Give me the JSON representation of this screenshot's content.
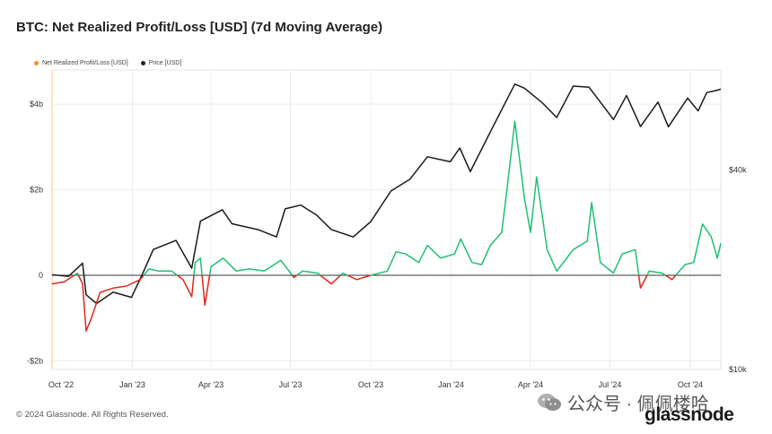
{
  "title": "BTC: Net Realized Profit/Loss [USD] (7d Moving Average)",
  "footer": "© 2024 Glassnode. All Rights Reserved.",
  "watermark": "公众号 · 佩佩楼哈",
  "brand": "glassnode",
  "colors": {
    "profit": "#1fbf74",
    "loss": "#e0261b",
    "price": "#1a1a1a",
    "legend_nrpl": "#f7931a",
    "zero": "#333333",
    "grid": "#ececec"
  },
  "legend": [
    {
      "label": "Net Realized Profit/Loss [USD]",
      "color": "#f7931a"
    },
    {
      "label": "Price [USD]",
      "color": "#222222"
    }
  ],
  "chart_data": {
    "type": "line",
    "title": "BTC: Net Realized Profit/Loss [USD] (7d Moving Average)",
    "x_ticks": [
      "Oct '22",
      "Jan '23",
      "Apr '23",
      "Jul '23",
      "Oct '23",
      "Jan '24",
      "Apr '24",
      "Jul '24",
      "Oct '24"
    ],
    "x_range": [
      "2022-10-01",
      "2024-11-05"
    ],
    "y_left": {
      "ticks": [
        "$4b",
        "$2b",
        "0",
        "-$2b"
      ],
      "tick_values": [
        4,
        2,
        0,
        -2
      ],
      "range": [
        -2.2,
        4.8
      ],
      "unit": "USD billions"
    },
    "y_right": {
      "ticks": [
        "$40k",
        "$10k"
      ],
      "tick_values": [
        40000,
        10000
      ],
      "scale": "log",
      "range": [
        10000,
        80000
      ]
    },
    "grid": true,
    "legend_position": "top-left",
    "series": [
      {
        "name": "Net Realized Profit/Loss [USD]",
        "axis": "left",
        "points": [
          [
            "2022-10-01",
            -0.2
          ],
          [
            "2022-10-15",
            -0.15
          ],
          [
            "2022-10-30",
            0.05
          ],
          [
            "2022-11-05",
            -0.2
          ],
          [
            "2022-11-09",
            -1.3
          ],
          [
            "2022-11-15",
            -1.0
          ],
          [
            "2022-11-25",
            -0.4
          ],
          [
            "2022-12-10",
            -0.3
          ],
          [
            "2022-12-25",
            -0.25
          ],
          [
            "2023-01-10",
            -0.1
          ],
          [
            "2023-01-20",
            0.15
          ],
          [
            "2023-01-31",
            0.1
          ],
          [
            "2023-02-15",
            0.1
          ],
          [
            "2023-02-28",
            -0.1
          ],
          [
            "2023-03-10",
            -0.5
          ],
          [
            "2023-03-14",
            0.3
          ],
          [
            "2023-03-20",
            0.4
          ],
          [
            "2023-03-25",
            -0.7
          ],
          [
            "2023-04-01",
            0.2
          ],
          [
            "2023-04-15",
            0.4
          ],
          [
            "2023-04-30",
            0.1
          ],
          [
            "2023-05-15",
            0.15
          ],
          [
            "2023-06-01",
            0.1
          ],
          [
            "2023-06-20",
            0.35
          ],
          [
            "2023-07-05",
            -0.05
          ],
          [
            "2023-07-15",
            0.1
          ],
          [
            "2023-08-01",
            0.05
          ],
          [
            "2023-08-17",
            -0.2
          ],
          [
            "2023-08-30",
            0.05
          ],
          [
            "2023-09-15",
            -0.1
          ],
          [
            "2023-10-01",
            0.0
          ],
          [
            "2023-10-20",
            0.1
          ],
          [
            "2023-10-30",
            0.55
          ],
          [
            "2023-11-10",
            0.5
          ],
          [
            "2023-11-25",
            0.3
          ],
          [
            "2023-12-05",
            0.7
          ],
          [
            "2023-12-20",
            0.4
          ],
          [
            "2024-01-05",
            0.5
          ],
          [
            "2024-01-12",
            0.85
          ],
          [
            "2024-01-25",
            0.3
          ],
          [
            "2024-02-05",
            0.25
          ],
          [
            "2024-02-15",
            0.7
          ],
          [
            "2024-02-28",
            1.0
          ],
          [
            "2024-03-05",
            2.0
          ],
          [
            "2024-03-14",
            3.6
          ],
          [
            "2024-03-25",
            1.8
          ],
          [
            "2024-04-01",
            1.0
          ],
          [
            "2024-04-08",
            2.3
          ],
          [
            "2024-04-20",
            0.6
          ],
          [
            "2024-05-01",
            0.1
          ],
          [
            "2024-05-20",
            0.6
          ],
          [
            "2024-06-05",
            0.8
          ],
          [
            "2024-06-10",
            1.7
          ],
          [
            "2024-06-20",
            0.3
          ],
          [
            "2024-07-05",
            0.05
          ],
          [
            "2024-07-15",
            0.5
          ],
          [
            "2024-07-30",
            0.6
          ],
          [
            "2024-08-05",
            -0.3
          ],
          [
            "2024-08-15",
            0.1
          ],
          [
            "2024-08-30",
            0.05
          ],
          [
            "2024-09-10",
            -0.1
          ],
          [
            "2024-09-25",
            0.25
          ],
          [
            "2024-10-05",
            0.3
          ],
          [
            "2024-10-15",
            1.2
          ],
          [
            "2024-10-25",
            0.9
          ],
          [
            "2024-11-01",
            0.4
          ],
          [
            "2024-11-05",
            0.75
          ]
        ]
      },
      {
        "name": "Price [USD]",
        "axis": "right",
        "points": [
          [
            "2022-10-01",
            19300
          ],
          [
            "2022-10-20",
            19100
          ],
          [
            "2022-11-05",
            20900
          ],
          [
            "2022-11-09",
            16800
          ],
          [
            "2022-11-21",
            15800
          ],
          [
            "2022-12-10",
            17100
          ],
          [
            "2022-12-31",
            16500
          ],
          [
            "2023-01-13",
            19500
          ],
          [
            "2023-01-25",
            23000
          ],
          [
            "2023-02-20",
            24500
          ],
          [
            "2023-03-10",
            20200
          ],
          [
            "2023-03-20",
            28000
          ],
          [
            "2023-04-14",
            30300
          ],
          [
            "2023-04-25",
            27500
          ],
          [
            "2023-05-25",
            26400
          ],
          [
            "2023-06-15",
            25100
          ],
          [
            "2023-06-25",
            30500
          ],
          [
            "2023-07-13",
            31300
          ],
          [
            "2023-07-31",
            29200
          ],
          [
            "2023-08-17",
            26400
          ],
          [
            "2023-09-11",
            25100
          ],
          [
            "2023-10-01",
            27900
          ],
          [
            "2023-10-24",
            34500
          ],
          [
            "2023-11-15",
            37500
          ],
          [
            "2023-12-05",
            43800
          ],
          [
            "2023-12-31",
            42300
          ],
          [
            "2024-01-11",
            46500
          ],
          [
            "2024-01-23",
            39500
          ],
          [
            "2024-02-15",
            52000
          ],
          [
            "2024-03-14",
            72500
          ],
          [
            "2024-03-25",
            70500
          ],
          [
            "2024-04-15",
            63500
          ],
          [
            "2024-05-01",
            57500
          ],
          [
            "2024-05-20",
            71500
          ],
          [
            "2024-06-07",
            71000
          ],
          [
            "2024-06-25",
            61500
          ],
          [
            "2024-07-05",
            56700
          ],
          [
            "2024-07-20",
            67000
          ],
          [
            "2024-08-05",
            54000
          ],
          [
            "2024-08-25",
            64000
          ],
          [
            "2024-09-06",
            53900
          ],
          [
            "2024-09-28",
            65800
          ],
          [
            "2024-10-10",
            60200
          ],
          [
            "2024-10-20",
            68400
          ],
          [
            "2024-11-01",
            69500
          ],
          [
            "2024-11-05",
            70000
          ]
        ]
      }
    ]
  }
}
